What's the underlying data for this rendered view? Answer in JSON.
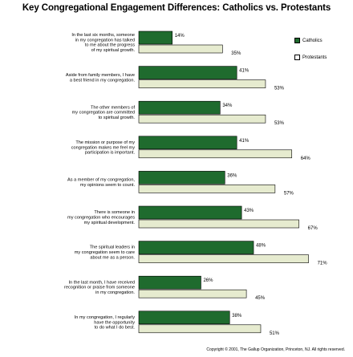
{
  "chart_data": {
    "type": "bar",
    "orientation": "horizontal",
    "title": "Key Congregational Engagement Differences: Catholics vs. Protestants",
    "categories": [
      "In the last six months, someone in my congregation has talked to me about the progress of my spiritual growth.",
      "Aside from family members, I have a best friend in my congregation.",
      "The other members of my congregation are committed to spiritual growth.",
      "The mission or purpose of my congregation makes me feel my participation is important.",
      "As a member of my congregation, my opinions seem to count.",
      "There is someone in my congregation who encourages my spiritual development.",
      "The spiritual leaders in my congregation seem to care about me as a person.",
      "In the last month, I have received recognition or praise from someone in my congregation.",
      "In my congregation, I regularly have the opportunity to do what I do best."
    ],
    "label_lines": [
      [
        "In the last six months, someone",
        "in my congregation has talked",
        "to me about the progress",
        "of my spiritual growth."
      ],
      [
        "Aside from family members, I have",
        "a best friend in my congregation."
      ],
      [
        "The other members of",
        "my congregation are committed",
        "to spiritual growth."
      ],
      [
        "The mission or purpose of my",
        "congregation makes me feel my",
        "participation is important."
      ],
      [
        "As a member of my congregation,",
        "my opinions seem to count."
      ],
      [
        "There is someone in",
        "my congregation who encourages",
        "my spiritual development."
      ],
      [
        "The spiritual leaders in",
        "my congregation seem to care",
        "about me as a person."
      ],
      [
        "In the last month, I have received",
        "recognition or praise from someone",
        "in my congregation."
      ],
      [
        "In my congregation, I regularly",
        "have the opportunity",
        "to do what I do best."
      ]
    ],
    "series": [
      {
        "name": "Catholics",
        "values": [
          14,
          41,
          34,
          41,
          36,
          43,
          48,
          26,
          38
        ],
        "color": "#1f6b2e"
      },
      {
        "name": "Protestants",
        "values": [
          35,
          53,
          53,
          64,
          57,
          67,
          71,
          45,
          51
        ],
        "color": "#e6ebcf"
      }
    ],
    "value_suffix": "%",
    "xlim": [
      0,
      100
    ],
    "grid": false,
    "legend_position": "top-right"
  },
  "copyright": "Copyright © 2001, The Gallup Organization, Princeton, NJ. All rights reserved."
}
